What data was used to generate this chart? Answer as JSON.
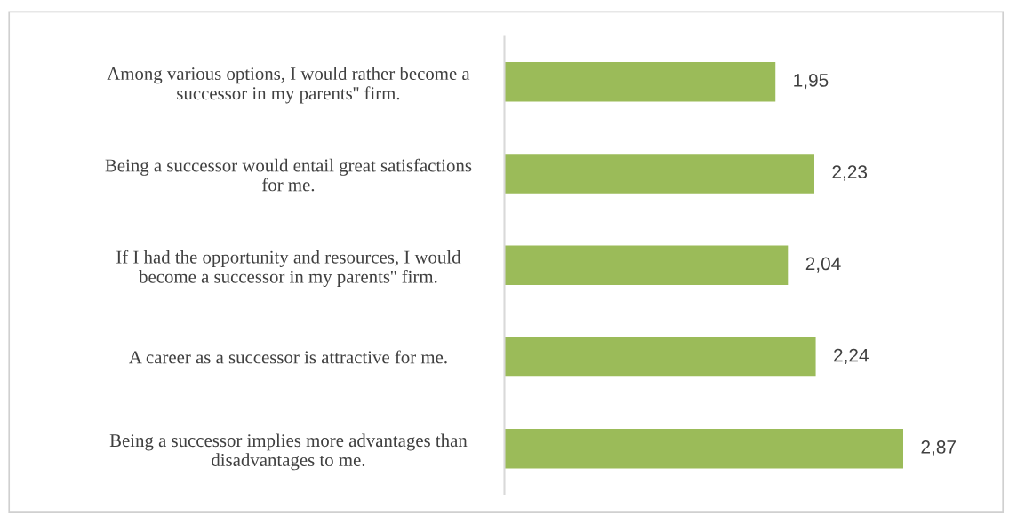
{
  "chart_data": {
    "type": "bar",
    "orientation": "horizontal",
    "categories": [
      "Among various options, I would rather become a\nsuccessor in my parents'' firm.",
      "Being a successor would entail great satisfactions\nfor me.",
      "If I had the opportunity and resources, I would\nbecome a successor in my parents'' firm.",
      "A career as a successor is attractive for me.",
      "Being a successor implies more advantages than\ndisadvantages to me."
    ],
    "values": [
      1.95,
      2.23,
      2.04,
      2.24,
      2.87
    ],
    "value_labels": [
      "1,95",
      "2,23",
      "2,04",
      "2,24",
      "2,87"
    ],
    "color": "#9bbb59",
    "grid": false,
    "legend": false
  }
}
